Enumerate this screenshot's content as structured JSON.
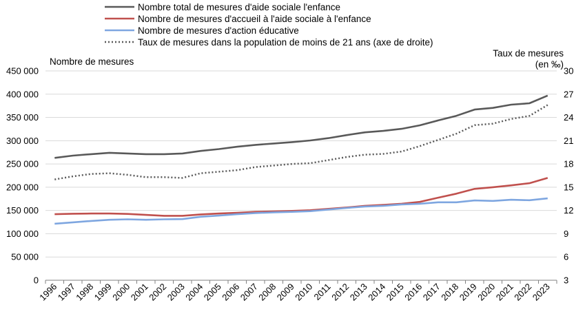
{
  "chart_data": {
    "type": "line",
    "title": "",
    "y_left_label": "Nombre de mesures",
    "y_right_label_line1": "Taux de mesures",
    "y_right_label_line2": "(en ‰)",
    "x": [
      "1996",
      "1997",
      "1998",
      "1999",
      "2000",
      "2001",
      "2002",
      "2003",
      "2004",
      "2005",
      "2006",
      "2007",
      "2008",
      "2009",
      "2010",
      "2011",
      "2012",
      "2013",
      "2014",
      "2015",
      "2016",
      "2017",
      "2018",
      "2019",
      "2020",
      "2021",
      "2022",
      "2023"
    ],
    "y_left": {
      "min": 0,
      "max": 450000,
      "step": 50000,
      "ticks": [
        "0",
        "50 000",
        "100 000",
        "150 000",
        "200 000",
        "250 000",
        "300 000",
        "350 000",
        "400 000",
        "450 000"
      ]
    },
    "y_right": {
      "min": 3,
      "max": 30,
      "step": 3,
      "ticks": [
        "3",
        "6",
        "9",
        "12",
        "15",
        "18",
        "21",
        "24",
        "27",
        "30"
      ]
    },
    "grid": "horizontal",
    "legend_position": "top",
    "series": [
      {
        "name": "Nombre total de mesures d'aide sociale l'enfance",
        "axis": "left",
        "color": "#595959",
        "style": "solid",
        "values": [
          263000,
          268000,
          271000,
          274000,
          272500,
          271000,
          271000,
          272500,
          278000,
          282000,
          287000,
          291000,
          294000,
          297000,
          300500,
          305500,
          312000,
          318000,
          321000,
          325500,
          333000,
          343500,
          353500,
          367000,
          370500,
          377500,
          380500,
          397000
        ]
      },
      {
        "name": "Nombre de mesures d'accueil à l'aide sociale à l'enfance",
        "axis": "left",
        "color": "#c0504d",
        "style": "solid",
        "values": [
          142000,
          143000,
          143500,
          143500,
          142500,
          140500,
          138500,
          138500,
          141500,
          143500,
          145000,
          147000,
          148000,
          149000,
          150500,
          153500,
          156500,
          160000,
          162000,
          164500,
          168500,
          177500,
          186000,
          196500,
          200000,
          204000,
          208500,
          220000
        ]
      },
      {
        "name": "Nombre de mesures d'action éducative",
        "axis": "left",
        "color": "#7ea6e0",
        "style": "solid",
        "values": [
          121500,
          124500,
          127500,
          130000,
          131000,
          130000,
          131000,
          131500,
          136500,
          139000,
          142000,
          144500,
          146000,
          147000,
          148500,
          152000,
          155500,
          158500,
          160000,
          163000,
          164500,
          167500,
          167500,
          171500,
          170500,
          173000,
          172000,
          176000
        ]
      },
      {
        "name": "Taux de mesures dans la population de moins de 21 ans (axe de droite)",
        "axis": "right",
        "color": "#595959",
        "style": "dotted",
        "values": [
          16.0,
          16.4,
          16.7,
          16.8,
          16.6,
          16.3,
          16.3,
          16.2,
          16.8,
          17.0,
          17.2,
          17.6,
          17.8,
          18.0,
          18.1,
          18.5,
          18.9,
          19.2,
          19.3,
          19.6,
          20.3,
          21.1,
          21.9,
          23.0,
          23.2,
          23.8,
          24.2,
          25.6
        ]
      }
    ]
  }
}
